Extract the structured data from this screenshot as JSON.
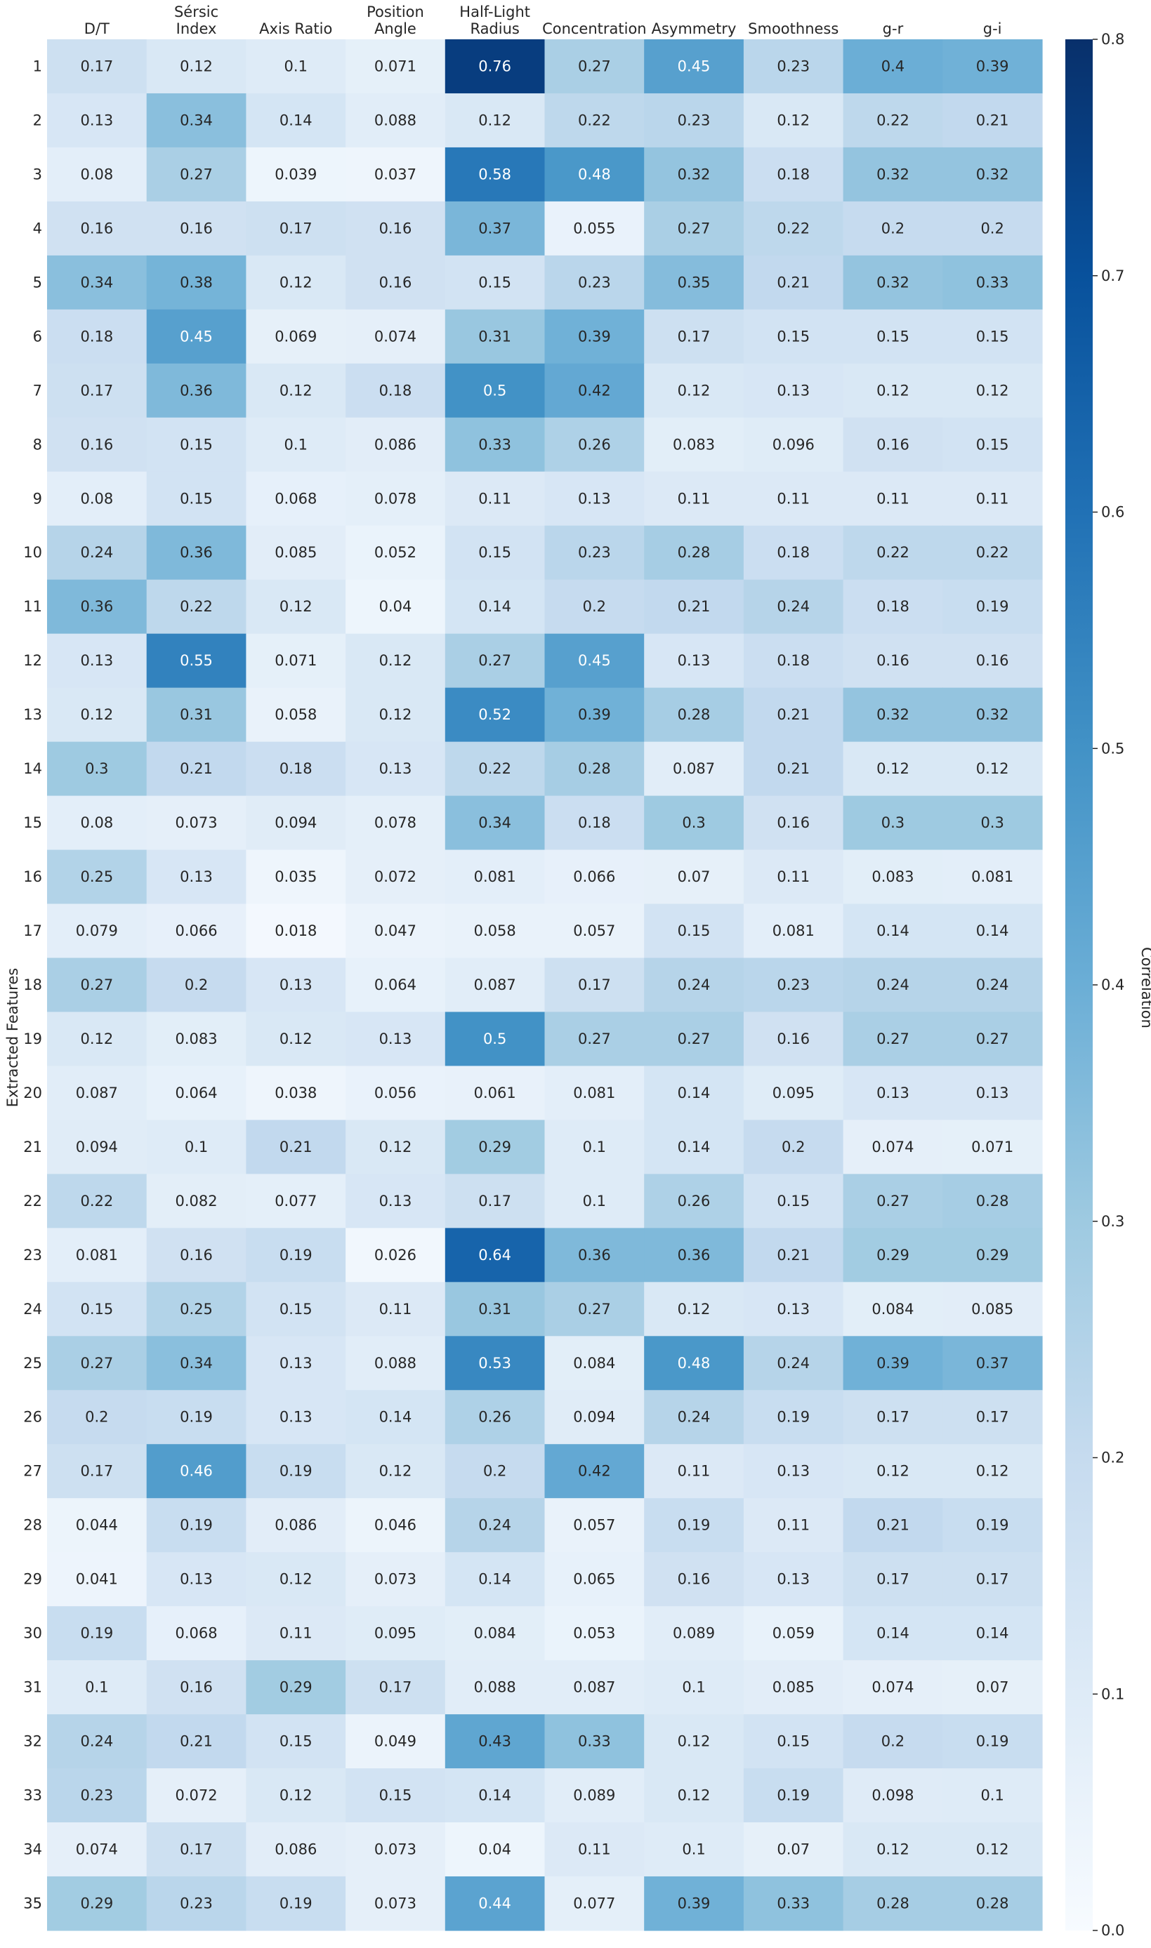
{
  "chart_data": {
    "type": "heatmap",
    "title": "",
    "xlabel": "",
    "ylabel": "Extracted Features",
    "columns": [
      [
        "D/T"
      ],
      [
        "Sérsic",
        "Index"
      ],
      [
        "Axis Ratio"
      ],
      [
        "Position",
        "Angle"
      ],
      [
        "Half-Light",
        "Radius"
      ],
      [
        "Concentration"
      ],
      [
        "Asymmetry"
      ],
      [
        "Smoothness"
      ],
      [
        "g-r"
      ],
      [
        "g-i"
      ]
    ],
    "rows": [
      "1",
      "2",
      "3",
      "4",
      "5",
      "6",
      "7",
      "8",
      "9",
      "10",
      "11",
      "12",
      "13",
      "14",
      "15",
      "16",
      "17",
      "18",
      "19",
      "20",
      "21",
      "22",
      "23",
      "24",
      "25",
      "26",
      "27",
      "28",
      "29",
      "30",
      "31",
      "32",
      "33",
      "34",
      "35"
    ],
    "values": [
      [
        0.17,
        0.12,
        0.1,
        0.071,
        0.76,
        0.27,
        0.45,
        0.23,
        0.4,
        0.39
      ],
      [
        0.13,
        0.34,
        0.14,
        0.088,
        0.12,
        0.22,
        0.23,
        0.12,
        0.22,
        0.21
      ],
      [
        0.08,
        0.27,
        0.039,
        0.037,
        0.58,
        0.48,
        0.32,
        0.18,
        0.32,
        0.32
      ],
      [
        0.16,
        0.16,
        0.17,
        0.16,
        0.37,
        0.055,
        0.27,
        0.22,
        0.2,
        0.2
      ],
      [
        0.34,
        0.38,
        0.12,
        0.16,
        0.15,
        0.23,
        0.35,
        0.21,
        0.32,
        0.33
      ],
      [
        0.18,
        0.45,
        0.069,
        0.074,
        0.31,
        0.39,
        0.17,
        0.15,
        0.15,
        0.15
      ],
      [
        0.17,
        0.36,
        0.12,
        0.18,
        0.5,
        0.42,
        0.12,
        0.13,
        0.12,
        0.12
      ],
      [
        0.16,
        0.15,
        0.1,
        0.086,
        0.33,
        0.26,
        0.083,
        0.096,
        0.16,
        0.15
      ],
      [
        0.08,
        0.15,
        0.068,
        0.078,
        0.11,
        0.13,
        0.11,
        0.11,
        0.11,
        0.11
      ],
      [
        0.24,
        0.36,
        0.085,
        0.052,
        0.15,
        0.23,
        0.28,
        0.18,
        0.22,
        0.22
      ],
      [
        0.36,
        0.22,
        0.12,
        0.04,
        0.14,
        0.2,
        0.21,
        0.24,
        0.18,
        0.19
      ],
      [
        0.13,
        0.55,
        0.071,
        0.12,
        0.27,
        0.45,
        0.13,
        0.18,
        0.16,
        0.16
      ],
      [
        0.12,
        0.31,
        0.058,
        0.12,
        0.52,
        0.39,
        0.28,
        0.21,
        0.32,
        0.32
      ],
      [
        0.3,
        0.21,
        0.18,
        0.13,
        0.22,
        0.28,
        0.087,
        0.21,
        0.12,
        0.12
      ],
      [
        0.08,
        0.073,
        0.094,
        0.078,
        0.34,
        0.18,
        0.3,
        0.16,
        0.3,
        0.3
      ],
      [
        0.25,
        0.13,
        0.035,
        0.072,
        0.081,
        0.066,
        0.07,
        0.11,
        0.083,
        0.081
      ],
      [
        0.079,
        0.066,
        0.018,
        0.047,
        0.058,
        0.057,
        0.15,
        0.081,
        0.14,
        0.14
      ],
      [
        0.27,
        0.2,
        0.13,
        0.064,
        0.087,
        0.17,
        0.24,
        0.23,
        0.24,
        0.24
      ],
      [
        0.12,
        0.083,
        0.12,
        0.13,
        0.5,
        0.27,
        0.27,
        0.16,
        0.27,
        0.27
      ],
      [
        0.087,
        0.064,
        0.038,
        0.056,
        0.061,
        0.081,
        0.14,
        0.095,
        0.13,
        0.13
      ],
      [
        0.094,
        0.1,
        0.21,
        0.12,
        0.29,
        0.1,
        0.14,
        0.2,
        0.074,
        0.071
      ],
      [
        0.22,
        0.082,
        0.077,
        0.13,
        0.17,
        0.1,
        0.26,
        0.15,
        0.27,
        0.28
      ],
      [
        0.081,
        0.16,
        0.19,
        0.026,
        0.64,
        0.36,
        0.36,
        0.21,
        0.29,
        0.29
      ],
      [
        0.15,
        0.25,
        0.15,
        0.11,
        0.31,
        0.27,
        0.12,
        0.13,
        0.084,
        0.085
      ],
      [
        0.27,
        0.34,
        0.13,
        0.088,
        0.53,
        0.084,
        0.48,
        0.24,
        0.39,
        0.37
      ],
      [
        0.2,
        0.19,
        0.13,
        0.14,
        0.26,
        0.094,
        0.24,
        0.19,
        0.17,
        0.17
      ],
      [
        0.17,
        0.46,
        0.19,
        0.12,
        0.2,
        0.42,
        0.11,
        0.13,
        0.12,
        0.12
      ],
      [
        0.044,
        0.19,
        0.086,
        0.046,
        0.24,
        0.057,
        0.19,
        0.11,
        0.21,
        0.19
      ],
      [
        0.041,
        0.13,
        0.12,
        0.073,
        0.14,
        0.065,
        0.16,
        0.13,
        0.17,
        0.17
      ],
      [
        0.19,
        0.068,
        0.11,
        0.095,
        0.084,
        0.053,
        0.089,
        0.059,
        0.14,
        0.14
      ],
      [
        0.1,
        0.16,
        0.29,
        0.17,
        0.088,
        0.087,
        0.1,
        0.085,
        0.074,
        0.07
      ],
      [
        0.24,
        0.21,
        0.15,
        0.049,
        0.43,
        0.33,
        0.12,
        0.15,
        0.2,
        0.19
      ],
      [
        0.23,
        0.072,
        0.12,
        0.15,
        0.14,
        0.089,
        0.12,
        0.19,
        0.098,
        0.1
      ],
      [
        0.074,
        0.17,
        0.086,
        0.073,
        0.04,
        0.11,
        0.1,
        0.07,
        0.12,
        0.12
      ],
      [
        0.29,
        0.23,
        0.19,
        0.073,
        0.44,
        0.077,
        0.39,
        0.33,
        0.28,
        0.28
      ]
    ],
    "colorbar": {
      "label": "Correlation",
      "range": [
        0.0,
        0.8
      ],
      "ticks": [
        "0.0",
        "0.1",
        "0.2",
        "0.3",
        "0.4",
        "0.5",
        "0.6",
        "0.7",
        "0.8"
      ],
      "colormap": "Blues",
      "colors": [
        "#f7fbff",
        "#deebf7",
        "#c6dbef",
        "#9ecae1",
        "#6baed6",
        "#4292c6",
        "#2171b5",
        "#08519c",
        "#08306b"
      ]
    },
    "light_text_color": "#ffffff",
    "dark_text_color": "#262626"
  }
}
